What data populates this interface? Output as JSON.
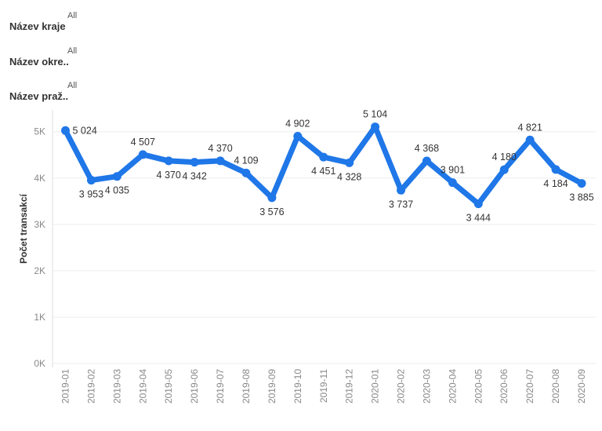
{
  "filters": [
    {
      "label": "Název kraje",
      "value": "All"
    },
    {
      "label": "Název okre..",
      "value": "All"
    },
    {
      "label": "Název praž..",
      "value": "All"
    }
  ],
  "colors": {
    "series": "#1f77e8",
    "grid": "#eeeeee",
    "axis": "#dddddd"
  },
  "chart_data": {
    "type": "line",
    "title": "",
    "xlabel": "",
    "ylabel": "Počet transakcí",
    "ylim": [
      0,
      5300
    ],
    "yticks": [
      0,
      1000,
      2000,
      3000,
      4000,
      5000
    ],
    "ytick_labels": [
      "0K",
      "1K",
      "2K",
      "3K",
      "4K",
      "5K"
    ],
    "categories": [
      "2019-01",
      "2019-02",
      "2019-03",
      "2019-04",
      "2019-05",
      "2019-06",
      "2019-07",
      "2019-08",
      "2019-09",
      "2019-10",
      "2019-11",
      "2019-12",
      "2020-01",
      "2020-02",
      "2020-03",
      "2020-04",
      "2020-05",
      "2020-06",
      "2020-07",
      "2020-08",
      "2020-09"
    ],
    "series": [
      {
        "values": [
          5024,
          3953,
          4035,
          4507,
          4370,
          4342,
          4370,
          4109,
          3576,
          4902,
          4451,
          4328,
          5104,
          3737,
          4368,
          3901,
          3444,
          4180,
          4821,
          4184,
          3885
        ],
        "labels": [
          "5 024",
          "3 953",
          "4 035",
          "4 507",
          "4 370",
          "4 342",
          "4 370",
          "4 109",
          "3 576",
          "4 902",
          "4 451",
          "4 328",
          "5 104",
          "3 737",
          "4 368",
          "3 901",
          "3 444",
          "4 180",
          "4 821",
          "4 184",
          "3 885"
        ]
      }
    ],
    "grid": true,
    "legend": "none"
  }
}
